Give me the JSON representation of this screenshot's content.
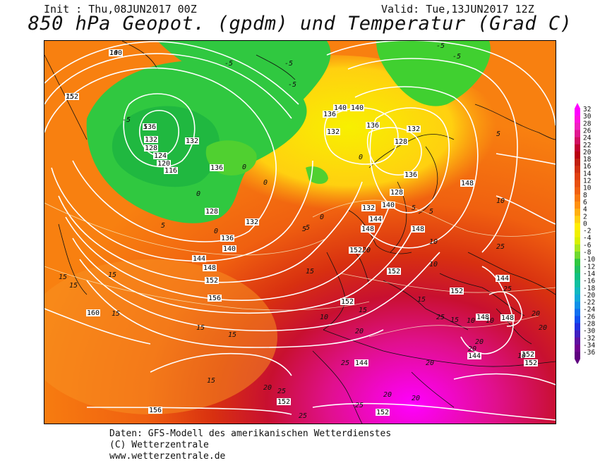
{
  "header": {
    "init": "Init : Thu,08JUN2017 00Z",
    "valid": "Valid: Tue,13JUN2017 12Z",
    "title": "850 hPa Geopot. (gpdm) und Temperatur (Grad C)"
  },
  "footer": {
    "line1": "Daten: GFS-Modell des amerikanischen Wetterdienstes",
    "line2": "(C) Wetterzentrale",
    "line3": "www.wetterzentrale.de"
  },
  "colorbar": {
    "levels": [
      "32",
      "30",
      "28",
      "26",
      "24",
      "22",
      "20",
      "18",
      "16",
      "14",
      "12",
      "10",
      "8",
      "6",
      "4",
      "2",
      "0",
      "-2",
      "-4",
      "-6",
      "-8",
      "-10",
      "-12",
      "-14",
      "-16",
      "-18",
      "-20",
      "-22",
      "-24",
      "-26",
      "-28",
      "-30",
      "-32",
      "-34",
      "-36"
    ],
    "colors": [
      "#ff00ff",
      "#ff10e0",
      "#f020c0",
      "#e01890",
      "#d01060",
      "#c00030",
      "#b80010",
      "#c02010",
      "#d03010",
      "#e04010",
      "#e85010",
      "#f06010",
      "#f87810",
      "#ff9010",
      "#ffb010",
      "#ffd010",
      "#ffee00",
      "#f0f000",
      "#d8f000",
      "#a8e820",
      "#70d830",
      "#30c840",
      "#20c060",
      "#10c080",
      "#10c0a0",
      "#10b8c0",
      "#10a8d8",
      "#1090e8",
      "#1070f0",
      "#1050f0",
      "#2030e0",
      "#4020c0",
      "#6010a0",
      "#700090",
      "#600080"
    ]
  },
  "map": {
    "labels": [
      {
        "t": "152",
        "kind": "geo"
      },
      {
        "t": "140",
        "kind": "geo"
      },
      {
        "t": "136",
        "kind": "geo"
      },
      {
        "t": "132",
        "kind": "geo"
      },
      {
        "t": "128",
        "kind": "geo"
      },
      {
        "t": "124",
        "kind": "geo"
      },
      {
        "t": "120",
        "kind": "geo"
      },
      {
        "t": "116",
        "kind": "geo"
      },
      {
        "t": "132",
        "kind": "geo"
      },
      {
        "t": "136",
        "kind": "geo"
      },
      {
        "t": "128",
        "kind": "geo"
      },
      {
        "t": "132",
        "kind": "geo"
      },
      {
        "t": "136",
        "kind": "geo"
      },
      {
        "t": "140",
        "kind": "geo"
      },
      {
        "t": "144",
        "kind": "geo"
      },
      {
        "t": "148",
        "kind": "geo"
      },
      {
        "t": "152",
        "kind": "geo"
      },
      {
        "t": "156",
        "kind": "geo"
      },
      {
        "t": "160",
        "kind": "geo"
      },
      {
        "t": "156",
        "kind": "geo"
      },
      {
        "t": "140",
        "kind": "geo"
      },
      {
        "t": "132",
        "kind": "geo"
      },
      {
        "t": "136",
        "kind": "geo"
      },
      {
        "t": "128",
        "kind": "geo"
      },
      {
        "t": "132",
        "kind": "geo"
      },
      {
        "t": "128",
        "kind": "geo"
      },
      {
        "t": "136",
        "kind": "geo"
      },
      {
        "t": "132",
        "kind": "geo"
      },
      {
        "t": "140",
        "kind": "geo"
      },
      {
        "t": "144",
        "kind": "geo"
      },
      {
        "t": "148",
        "kind": "geo"
      },
      {
        "t": "152",
        "kind": "geo"
      },
      {
        "t": "152",
        "kind": "geo"
      },
      {
        "t": "152",
        "kind": "geo"
      },
      {
        "t": "152",
        "kind": "geo"
      },
      {
        "t": "148",
        "kind": "geo"
      },
      {
        "t": "148",
        "kind": "geo"
      },
      {
        "t": "144",
        "kind": "geo"
      },
      {
        "t": "144",
        "kind": "geo"
      },
      {
        "t": "144",
        "kind": "geo"
      },
      {
        "t": "148",
        "kind": "geo"
      },
      {
        "t": "148",
        "kind": "geo"
      },
      {
        "t": "152",
        "kind": "geo"
      },
      {
        "t": "152",
        "kind": "geo"
      },
      {
        "t": "152",
        "kind": "geo"
      },
      {
        "t": "152",
        "kind": "geo"
      },
      {
        "t": "140",
        "kind": "geo"
      },
      {
        "t": "136",
        "kind": "geo"
      },
      {
        "t": "-5",
        "kind": "temp"
      },
      {
        "t": "-5",
        "kind": "temp"
      },
      {
        "t": "-5",
        "kind": "temp"
      },
      {
        "t": "-5",
        "kind": "temp"
      },
      {
        "t": "-5",
        "kind": "temp"
      },
      {
        "t": "-5",
        "kind": "temp"
      },
      {
        "t": "0",
        "kind": "temp"
      },
      {
        "t": "0",
        "kind": "temp"
      },
      {
        "t": "0",
        "kind": "temp"
      },
      {
        "t": "0",
        "kind": "temp"
      },
      {
        "t": "0",
        "kind": "temp"
      },
      {
        "t": "0",
        "kind": "temp"
      },
      {
        "t": "5",
        "kind": "temp"
      },
      {
        "t": "5",
        "kind": "temp"
      },
      {
        "t": "5",
        "kind": "temp"
      },
      {
        "t": "5",
        "kind": "temp"
      },
      {
        "t": "5",
        "kind": "temp"
      },
      {
        "t": "5",
        "kind": "temp"
      },
      {
        "t": "10",
        "kind": "temp"
      },
      {
        "t": "10",
        "kind": "temp"
      },
      {
        "t": "10",
        "kind": "temp"
      },
      {
        "t": "10",
        "kind": "temp"
      },
      {
        "t": "10",
        "kind": "temp"
      },
      {
        "t": "10",
        "kind": "temp"
      },
      {
        "t": "10",
        "kind": "temp"
      },
      {
        "t": "15",
        "kind": "temp"
      },
      {
        "t": "15",
        "kind": "temp"
      },
      {
        "t": "15",
        "kind": "temp"
      },
      {
        "t": "15",
        "kind": "temp"
      },
      {
        "t": "15",
        "kind": "temp"
      },
      {
        "t": "15",
        "kind": "temp"
      },
      {
        "t": "15",
        "kind": "temp"
      },
      {
        "t": "15",
        "kind": "temp"
      },
      {
        "t": "15",
        "kind": "temp"
      },
      {
        "t": "15",
        "kind": "temp"
      },
      {
        "t": "20",
        "kind": "temp"
      },
      {
        "t": "20",
        "kind": "temp"
      },
      {
        "t": "20",
        "kind": "temp"
      },
      {
        "t": "20",
        "kind": "temp"
      },
      {
        "t": "20",
        "kind": "temp"
      },
      {
        "t": "20",
        "kind": "temp"
      },
      {
        "t": "20",
        "kind": "temp"
      },
      {
        "t": "20",
        "kind": "temp"
      },
      {
        "t": "25",
        "kind": "temp"
      },
      {
        "t": "25",
        "kind": "temp"
      },
      {
        "t": "25",
        "kind": "temp"
      },
      {
        "t": "25",
        "kind": "temp"
      },
      {
        "t": "25",
        "kind": "temp"
      },
      {
        "t": "25",
        "kind": "temp"
      },
      {
        "t": "25",
        "kind": "temp"
      },
      {
        "t": "20",
        "kind": "temp"
      },
      {
        "t": "20",
        "kind": "temp"
      },
      {
        "t": "15",
        "kind": "temp"
      },
      {
        "t": "15",
        "kind": "temp"
      },
      {
        "t": "10",
        "kind": "temp"
      },
      {
        "t": "5",
        "kind": "temp"
      }
    ]
  }
}
